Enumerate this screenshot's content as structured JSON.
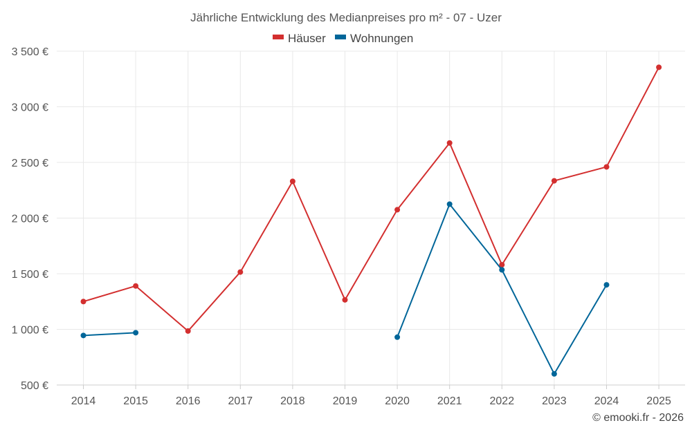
{
  "chart_data": {
    "type": "line",
    "title": "Jährliche Entwicklung des Medianpreises pro m² - 07 - Uzer",
    "x": [
      2014,
      2015,
      2016,
      2017,
      2018,
      2019,
      2020,
      2021,
      2022,
      2023,
      2024,
      2025
    ],
    "x_tick_labels": [
      "2014",
      "2015",
      "2016",
      "2017",
      "2018",
      "2019",
      "2020",
      "2021",
      "2022",
      "2023",
      "2024",
      "2025"
    ],
    "ylim": [
      500,
      3500
    ],
    "y_ticks": [
      500,
      1000,
      1500,
      2000,
      2500,
      3000,
      3500
    ],
    "y_tick_labels": [
      "500 €",
      "1 000 €",
      "1 500 €",
      "2 000 €",
      "2 500 €",
      "3 000 €",
      "3 500 €"
    ],
    "grid": true,
    "legend_position": "top-center",
    "series": [
      {
        "name": "Häuser",
        "color": "#d32f2f",
        "values": [
          1250,
          1390,
          985,
          1515,
          2330,
          1265,
          2075,
          2675,
          1580,
          2335,
          2460,
          3355
        ]
      },
      {
        "name": "Wohnungen",
        "color": "#006699",
        "values": [
          945,
          970,
          null,
          null,
          null,
          null,
          930,
          2125,
          1535,
          600,
          1400,
          null
        ]
      }
    ]
  },
  "credit": "© emooki.fr - 2026"
}
